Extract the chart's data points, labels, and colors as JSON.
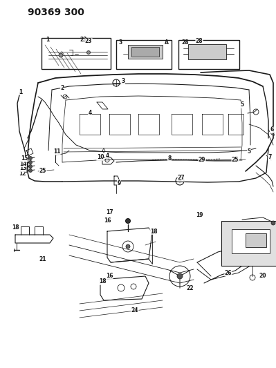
{
  "title": "90369 300",
  "bg_color": "#ffffff",
  "fig_width": 3.99,
  "fig_height": 5.33,
  "dpi": 100,
  "line_color": "#1a1a1a",
  "label_fontsize": 6.0,
  "title_fontsize": 10
}
